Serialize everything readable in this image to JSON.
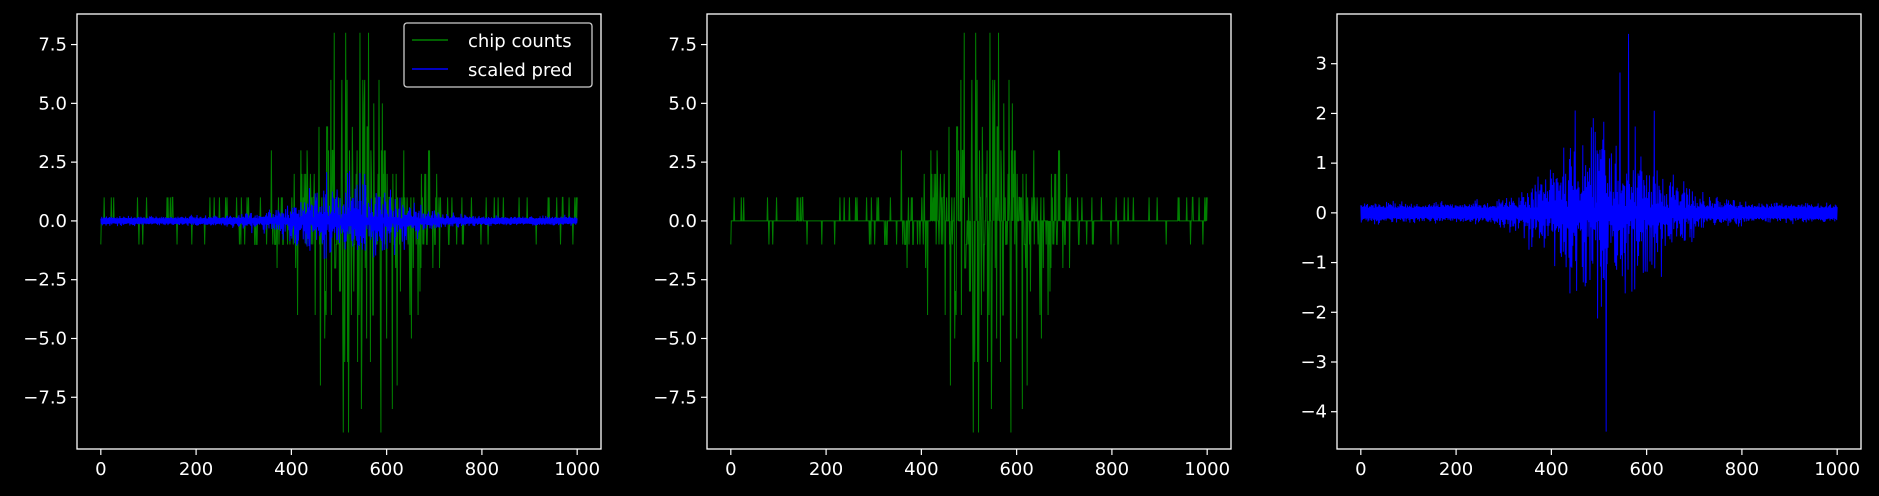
{
  "chart_data": [
    {
      "type": "line",
      "title": "",
      "xlabel": "",
      "ylabel": "",
      "xlim": [
        -50,
        1050
      ],
      "ylim": [
        -9.7,
        8.8
      ],
      "xticks": [
        0,
        200,
        400,
        600,
        800,
        1000
      ],
      "xtick_labels": [
        "0",
        "200",
        "400",
        "600",
        "800",
        "1000"
      ],
      "yticks": [
        -7.5,
        -5.0,
        -2.5,
        0.0,
        2.5,
        5.0,
        7.5
      ],
      "ytick_labels": [
        "−7.5",
        "−5.0",
        "−2.5",
        "0.0",
        "2.5",
        "5.0",
        "7.5"
      ],
      "grid": false,
      "legend": {
        "position": "top-right",
        "entries": [
          "chip counts",
          "scaled pred"
        ]
      },
      "series": [
        {
          "name": "chip counts",
          "color": "#008000",
          "kind": "sparse_integer_spikes",
          "x_range": [
            0,
            1000
          ],
          "n_points": 1001,
          "baseline": 0,
          "spike_range": [
            -9,
            8
          ],
          "spike_center": 530,
          "spike_spread": 150
        },
        {
          "name": "scaled pred",
          "color": "#0000ff",
          "kind": "dense_noise_two_bands",
          "x_range": [
            0,
            1000
          ],
          "n_points": 1001,
          "envelope_peak": 2.5,
          "envelope_center": 520
        }
      ]
    },
    {
      "type": "line",
      "title": "",
      "xlabel": "",
      "ylabel": "",
      "xlim": [
        -50,
        1050
      ],
      "ylim": [
        -9.7,
        8.8
      ],
      "xticks": [
        0,
        200,
        400,
        600,
        800,
        1000
      ],
      "xtick_labels": [
        "0",
        "200",
        "400",
        "600",
        "800",
        "1000"
      ],
      "yticks": [
        -7.5,
        -5.0,
        -2.5,
        0.0,
        2.5,
        5.0,
        7.5
      ],
      "ytick_labels": [
        "−7.5",
        "−5.0",
        "−2.5",
        "0.0",
        "2.5",
        "5.0",
        "7.5"
      ],
      "grid": false,
      "series": [
        {
          "color": "#008000",
          "kind": "sparse_integer_spikes",
          "x_range": [
            0,
            1000
          ],
          "n_points": 1001,
          "baseline": 0,
          "spike_range": [
            -9,
            8
          ],
          "spike_center": 530,
          "spike_spread": 150
        }
      ]
    },
    {
      "type": "line",
      "title": "",
      "xlabel": "",
      "ylabel": "",
      "xlim": [
        -50,
        1050
      ],
      "ylim": [
        -4.75,
        4.0
      ],
      "xticks": [
        0,
        200,
        400,
        600,
        800,
        1000
      ],
      "xtick_labels": [
        "0",
        "200",
        "400",
        "600",
        "800",
        "1000"
      ],
      "yticks": [
        -4,
        -3,
        -2,
        -1,
        0,
        1,
        2,
        3
      ],
      "ytick_labels": [
        "−4",
        "−3",
        "−2",
        "−1",
        "0",
        "1",
        "2",
        "3"
      ],
      "grid": false,
      "series": [
        {
          "color": "#0000ff",
          "kind": "dense_noise_two_bands",
          "x_range": [
            0,
            1000
          ],
          "n_points": 1001,
          "envelope_peak": 2.5,
          "envelope_center": 520,
          "max": 3.6,
          "min": -4.4
        }
      ]
    }
  ]
}
